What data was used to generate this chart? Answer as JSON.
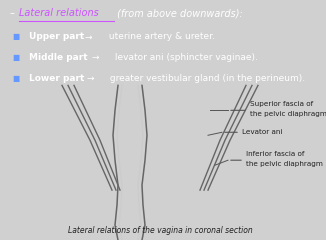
{
  "bg_top_color": "#1a10b0",
  "bg_bottom_color": "#d0d0d0",
  "title_dash": "–",
  "title_underline": "Lateral relations",
  "title_rest": " (from above downwards):",
  "title_color": "#cc55ff",
  "title_rest_color": "#ffffff",
  "bullet_color": "#6699ff",
  "bullet_symbol": "■",
  "lines": [
    {
      "bold": "Upper part",
      "arrow": "→",
      "rest": " uterine artery & ureter."
    },
    {
      "bold": "Middle part",
      "arrow": "→",
      "rest": " levator ani (sphincter vaginae)."
    },
    {
      "bold": "Lower part",
      "arrow": "→",
      "rest": " greater vestibular gland (in the perineum)."
    }
  ],
  "line_text_color": "#ffffff",
  "diagram_bg": "#d0d0d0",
  "label1": "Superior fascia of",
  "label1b": "the pelvic diaphragm",
  "label2": "Levator ani",
  "label3": "Inferior fascia of",
  "label3b": "the pelvic diaphragm",
  "caption": "Lateral relations of the vagina in coronal section",
  "label_color": "#222222",
  "line_color": "#555555",
  "dgray": "#666666",
  "lgray": "#cccccc",
  "mgray": "#999999"
}
